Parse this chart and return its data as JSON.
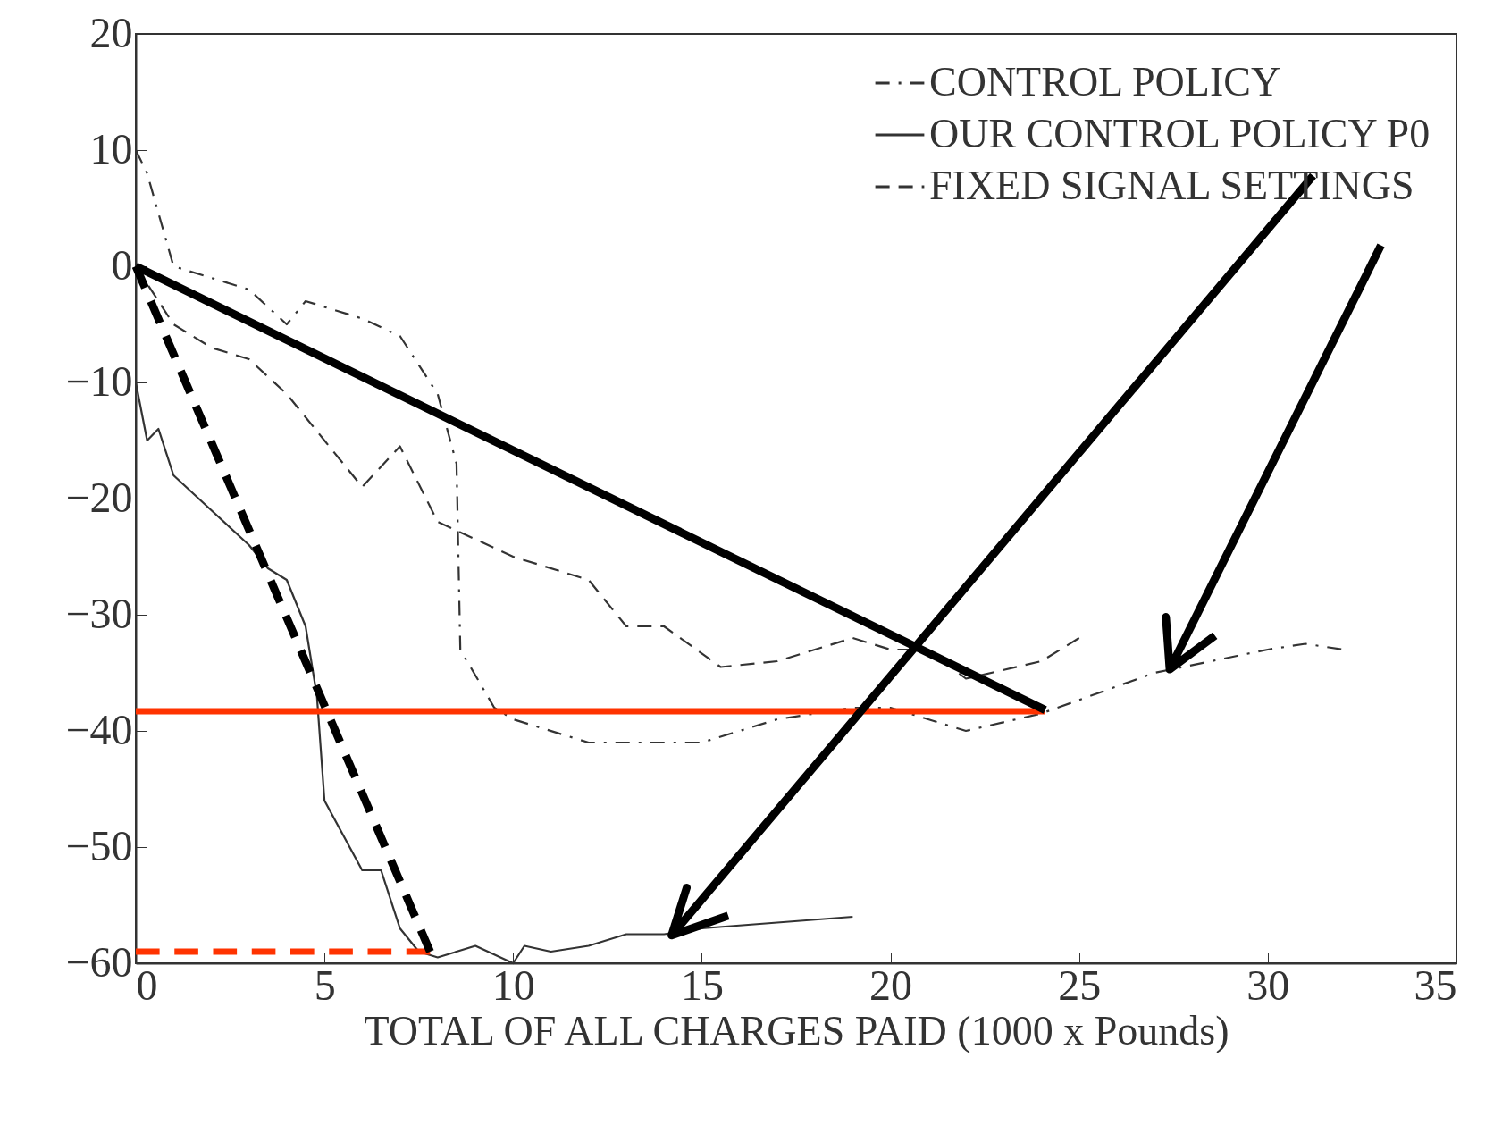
{
  "chart_data": {
    "type": "line",
    "xlabel": "TOTAL OF ALL CHARGES PAID (1000 x Pounds)",
    "xlim": [
      0,
      35
    ],
    "xticks": [
      0,
      5,
      10,
      15,
      20,
      25,
      30,
      35
    ],
    "ylim": [
      -60,
      20
    ],
    "yticks": [
      -60,
      -50,
      -40,
      -30,
      -20,
      -10,
      0,
      10,
      20
    ],
    "grid": false,
    "legend": "top right",
    "series": [
      {
        "name": "CONTROL POLICY",
        "color": "#333333",
        "line_style": "dashdot",
        "x": [
          0,
          0.3,
          1,
          3,
          4,
          4.5,
          6,
          7,
          8,
          8.5,
          8.6,
          9.5,
          10,
          12,
          15,
          17,
          19,
          20,
          22,
          24,
          27,
          30,
          31,
          32
        ],
        "values": [
          10,
          8,
          0,
          -2,
          -5,
          -3,
          -4.5,
          -6,
          -11,
          -17,
          -33,
          -38,
          -39,
          -41,
          -41,
          -39,
          -38,
          -38,
          -40,
          -38.5,
          -35,
          -33,
          -32.5,
          -33
        ]
      },
      {
        "name": "OUR CONTROL POLICY P0",
        "color": "#333333",
        "line_style": "solid",
        "x": [
          0,
          0.3,
          0.6,
          1,
          2,
          3,
          3.5,
          4,
          4.5,
          4.8,
          5,
          5.5,
          6,
          6.5,
          7,
          7.5,
          8,
          9,
          10,
          10.3,
          11,
          12,
          13,
          14,
          15,
          17,
          19
        ],
        "values": [
          -10,
          -15,
          -14,
          -18,
          -21,
          -24,
          -26,
          -27,
          -31,
          -37,
          -46,
          -49,
          -52,
          -52,
          -57,
          -59,
          -59.5,
          -58.5,
          -60,
          -58.5,
          -59,
          -58.5,
          -57.5,
          -57.5,
          -57,
          -56.5,
          -56
        ]
      },
      {
        "name": "FIXED SIGNAL SETTINGS",
        "color": "#333333",
        "line_style": "dashed",
        "x": [
          0,
          1,
          2,
          3,
          4,
          5,
          6,
          7,
          8,
          10,
          12,
          13,
          14,
          15.5,
          17,
          19,
          20,
          21,
          22,
          24,
          25
        ],
        "values": [
          0,
          -5,
          -7,
          -8,
          -11,
          -15,
          -19,
          -15.5,
          -22,
          -25,
          -27,
          -31,
          -31,
          -34.5,
          -34,
          -32,
          -33,
          -33,
          -35.5,
          -34,
          -32
        ]
      },
      {
        "color": "#ff3300",
        "line_style": "solid",
        "x": [
          0,
          24.1
        ],
        "values": [
          -38.3,
          -38.3
        ]
      },
      {
        "color": "#ff3300",
        "line_style": "dashed",
        "x": [
          0,
          7.8
        ],
        "values": [
          -59,
          -59
        ]
      },
      {
        "color": "#000000",
        "line_style": "solid",
        "x": [
          0,
          24.1
        ],
        "values": [
          0,
          -38.2
        ]
      },
      {
        "color": "#000000",
        "line_style": "dashed",
        "x": [
          0,
          7.8
        ],
        "values": [
          0,
          -59
        ]
      },
      {
        "color": "#000000",
        "line_style": "solid",
        "x": [
          31.2,
          14.2,
          14.6,
          14.2,
          15.7
        ],
        "values": [
          7.8,
          -57.6,
          -53.5,
          -57.6,
          -55.9
        ]
      },
      {
        "color": "#000000",
        "line_style": "solid",
        "x": [
          33,
          27.4,
          27.3,
          27.4,
          28.6
        ],
        "values": [
          1.8,
          -34.7,
          -30.2,
          -34.7,
          -31.8
        ]
      }
    ]
  }
}
